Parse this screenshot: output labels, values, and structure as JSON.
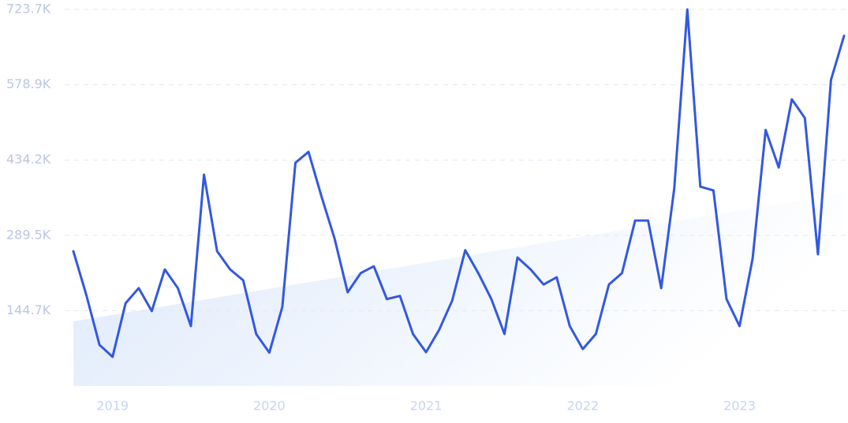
{
  "chart_data": {
    "type": "line",
    "categories": [
      null,
      null,
      null,
      "2019",
      null,
      null,
      null,
      null,
      null,
      null,
      null,
      null,
      null,
      null,
      null,
      "2020",
      null,
      null,
      null,
      null,
      null,
      null,
      null,
      null,
      null,
      null,
      null,
      "2021",
      null,
      null,
      null,
      null,
      null,
      null,
      null,
      null,
      null,
      null,
      null,
      "2022",
      null,
      null,
      null,
      null,
      null,
      null,
      null,
      null,
      null,
      null,
      null,
      "2023",
      null,
      null,
      null,
      null,
      null,
      null,
      null,
      null
    ],
    "series": [
      {
        "color": "#3358e0",
        "values": [
          259000,
          174000,
          79000,
          56000,
          159000,
          188000,
          144000,
          224000,
          188000,
          115000,
          406000,
          259000,
          224000,
          203000,
          100000,
          64000,
          152000,
          429000,
          450000,
          364000,
          283000,
          180000,
          217000,
          230000,
          167000,
          173000,
          100000,
          65000,
          108000,
          164000,
          261000,
          217000,
          167000,
          100000,
          247000,
          224000,
          195000,
          209000,
          115000,
          71000,
          100000,
          195000,
          217000,
          318000,
          318000,
          188000,
          379000,
          723700,
          383000,
          376000,
          167000,
          115000,
          245000,
          492000,
          420000,
          551000,
          515000,
          253000,
          588000,
          673000
        ]
      }
    ],
    "trend": {
      "color": "#dbe8fb",
      "values": [
        124000,
        371000
      ]
    },
    "ylim": [
      0,
      723700
    ],
    "yticks": [
      {
        "value": 144700,
        "label": "144.7K"
      },
      {
        "value": 289500,
        "label": "289.5K"
      },
      {
        "value": 434200,
        "label": "434.2K"
      },
      {
        "value": 578900,
        "label": "578.9K"
      },
      {
        "value": 723700,
        "label": "723.7K"
      }
    ],
    "grid": true
  }
}
